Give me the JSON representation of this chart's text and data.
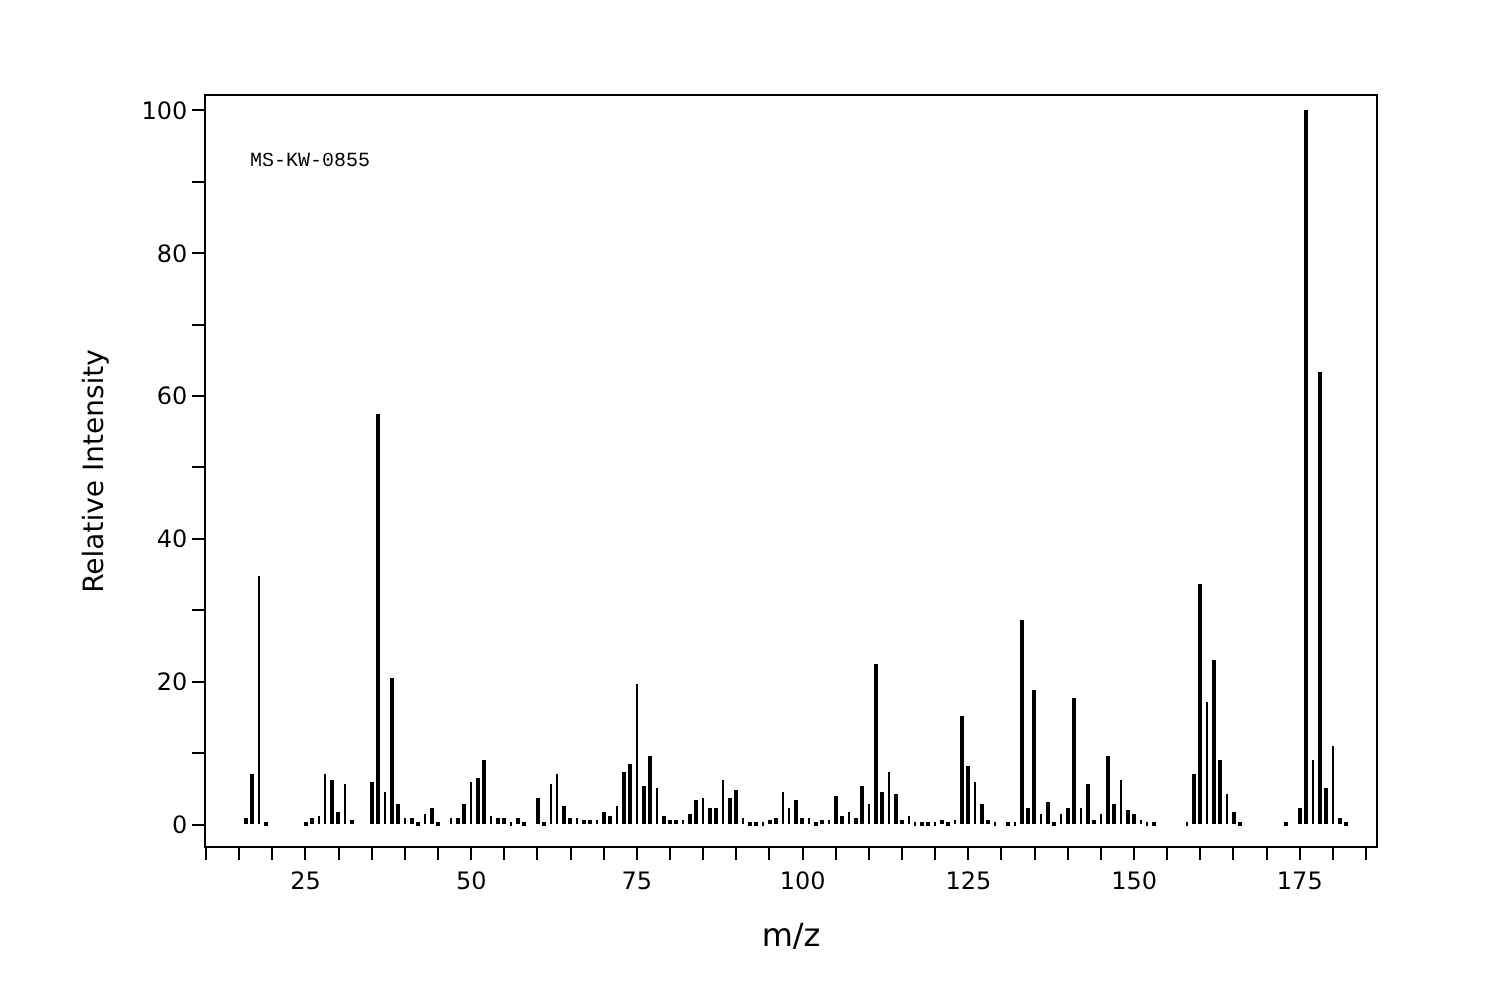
{
  "chart_data": {
    "type": "bar",
    "xlabel": "m/z",
    "ylabel": "Relative Intensity",
    "annotations": [
      "MS-KW-0855"
    ],
    "x": [
      16,
      17,
      18,
      19,
      25,
      26,
      27,
      28,
      29,
      30,
      31,
      32,
      35,
      36,
      37,
      38,
      39,
      40,
      41,
      42,
      43,
      44,
      45,
      47,
      48,
      49,
      50,
      51,
      52,
      53,
      54,
      55,
      56,
      57,
      58,
      60,
      61,
      62,
      63,
      64,
      65,
      66,
      67,
      68,
      69,
      70,
      71,
      72,
      73,
      74,
      75,
      76,
      77,
      78,
      79,
      80,
      81,
      82,
      83,
      84,
      85,
      86,
      87,
      88,
      89,
      90,
      91,
      92,
      93,
      94,
      95,
      96,
      97,
      98,
      99,
      100,
      101,
      102,
      103,
      104,
      105,
      106,
      107,
      108,
      109,
      110,
      111,
      112,
      113,
      114,
      115,
      116,
      117,
      118,
      119,
      120,
      121,
      122,
      123,
      124,
      125,
      126,
      127,
      128,
      129,
      131,
      132,
      133,
      134,
      135,
      136,
      137,
      138,
      139,
      140,
      141,
      142,
      143,
      144,
      145,
      146,
      147,
      148,
      149,
      150,
      151,
      152,
      153,
      158,
      159,
      160,
      161,
      162,
      163,
      164,
      165,
      166,
      173,
      175,
      176,
      177,
      178,
      179,
      180,
      181,
      182
    ],
    "values": [
      1.0,
      7.0,
      34.9,
      0.5,
      0.3,
      1.0,
      1.2,
      7.0,
      6.2,
      1.7,
      5.6,
      0.6,
      5.9,
      57.5,
      4.7,
      20.6,
      3.0,
      1.0,
      1.0,
      0.5,
      1.5,
      2.3,
      0.5,
      1.0,
      0.8,
      2.9,
      5.9,
      6.4,
      9.0,
      1.1,
      0.8,
      0.8,
      0.5,
      0.8,
      0.5,
      3.8,
      0.5,
      5.6,
      7.2,
      2.6,
      0.8,
      0.8,
      0.6,
      0.6,
      0.6,
      1.8,
      1.2,
      2.6,
      7.4,
      8.5,
      19.6,
      5.4,
      9.6,
      5.1,
      1.2,
      0.6,
      0.7,
      0.6,
      1.5,
      3.4,
      3.7,
      2.3,
      2.3,
      6.2,
      3.7,
      4.8,
      0.9,
      0.5,
      0.5,
      0.5,
      0.6,
      0.9,
      4.6,
      2.3,
      3.4,
      0.9,
      0.9,
      0.5,
      0.7,
      0.7,
      4.0,
      1.2,
      1.8,
      0.9,
      5.4,
      2.9,
      22.4,
      4.6,
      7.4,
      4.3,
      0.7,
      1.2,
      0.5,
      0.5,
      0.5,
      0.5,
      0.6,
      0.5,
      0.6,
      15.2,
      8.2,
      6.0,
      2.9,
      0.7,
      0.4,
      0.5,
      0.5,
      28.6,
      2.3,
      18.8,
      1.5,
      3.2,
      0.4,
      1.5,
      2.3,
      17.7,
      2.3,
      5.7,
      0.7,
      1.5,
      9.6,
      2.9,
      6.2,
      2.0,
      1.5,
      0.7,
      0.4,
      0.4,
      0.4,
      7.1,
      33.8,
      17.1,
      23.0,
      9.0,
      4.3,
      1.8,
      0.4,
      0.4,
      2.3,
      100,
      9.0,
      63.4,
      5.1,
      11.0,
      0.9,
      0.4
    ],
    "color": "#000000",
    "xlim": [
      10,
      186.5
    ],
    "ylim": [
      -3,
      102
    ],
    "xticks": [
      {
        "value": 10,
        "label": null
      },
      {
        "value": 15,
        "label": null
      },
      {
        "value": 20,
        "label": null
      },
      25,
      {
        "value": 30,
        "label": null
      },
      {
        "value": 35,
        "label": null
      },
      {
        "value": 40,
        "label": null
      },
      {
        "value": 45,
        "label": null
      },
      50,
      {
        "value": 55,
        "label": null
      },
      {
        "value": 60,
        "label": null
      },
      {
        "value": 65,
        "label": null
      },
      {
        "value": 70,
        "label": null
      },
      75,
      {
        "value": 80,
        "label": null
      },
      {
        "value": 85,
        "label": null
      },
      {
        "value": 90,
        "label": null
      },
      {
        "value": 95,
        "label": null
      },
      100,
      {
        "value": 105,
        "label": null
      },
      {
        "value": 110,
        "label": null
      },
      {
        "value": 115,
        "label": null
      },
      {
        "value": 120,
        "label": null
      },
      125,
      {
        "value": 130,
        "label": null
      },
      {
        "value": 135,
        "label": null
      },
      {
        "value": 140,
        "label": null
      },
      {
        "value": 145,
        "label": null
      },
      150,
      {
        "value": 155,
        "label": null
      },
      {
        "value": 160,
        "label": null
      },
      {
        "value": 165,
        "label": null
      },
      {
        "value": 170,
        "label": null
      },
      175,
      {
        "value": 180,
        "label": null
      },
      {
        "value": 185,
        "label": null
      }
    ],
    "yticks": [
      0,
      {
        "value": 10,
        "label": null
      },
      20,
      {
        "value": 30,
        "label": null
      },
      40,
      {
        "value": 50,
        "label": null
      },
      60,
      {
        "value": 70,
        "label": null
      },
      80,
      {
        "value": 90,
        "label": null
      },
      100
    ],
    "marker": "none"
  }
}
